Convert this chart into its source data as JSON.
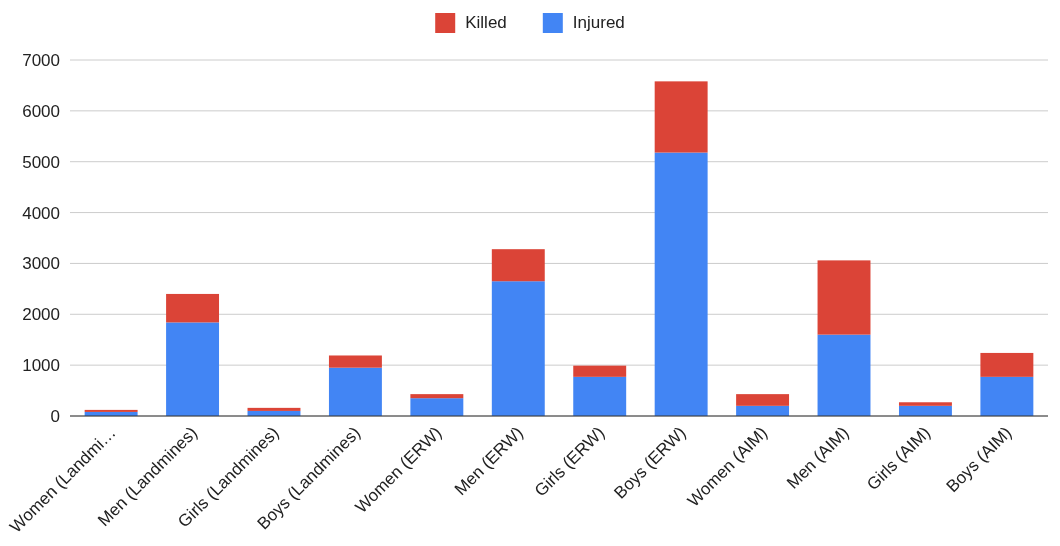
{
  "chart_data": {
    "type": "bar",
    "stacked": true,
    "categories": [
      "Women (Landmi…",
      "Men (Landmines)",
      "Girls (Landmines)",
      "Boys (Landmines)",
      "Women (ERW)",
      "Men (ERW)",
      "Girls (ERW)",
      "Boys (ERW)",
      "Women (AIM)",
      "Men (AIM)",
      "Girls (AIM)",
      "Boys (AIM)"
    ],
    "series": [
      {
        "name": "Injured",
        "color": "#4285f4",
        "values": [
          80,
          1840,
          100,
          950,
          350,
          2650,
          770,
          5180,
          200,
          1600,
          200,
          770
        ]
      },
      {
        "name": "Killed",
        "color": "#db4437",
        "values": [
          40,
          560,
          60,
          240,
          80,
          630,
          220,
          1400,
          230,
          1460,
          70,
          470
        ]
      }
    ],
    "ylim": [
      0,
      7000
    ],
    "yticks": [
      0,
      1000,
      2000,
      3000,
      4000,
      5000,
      6000,
      7000
    ],
    "grid": "y",
    "legend": "top"
  }
}
